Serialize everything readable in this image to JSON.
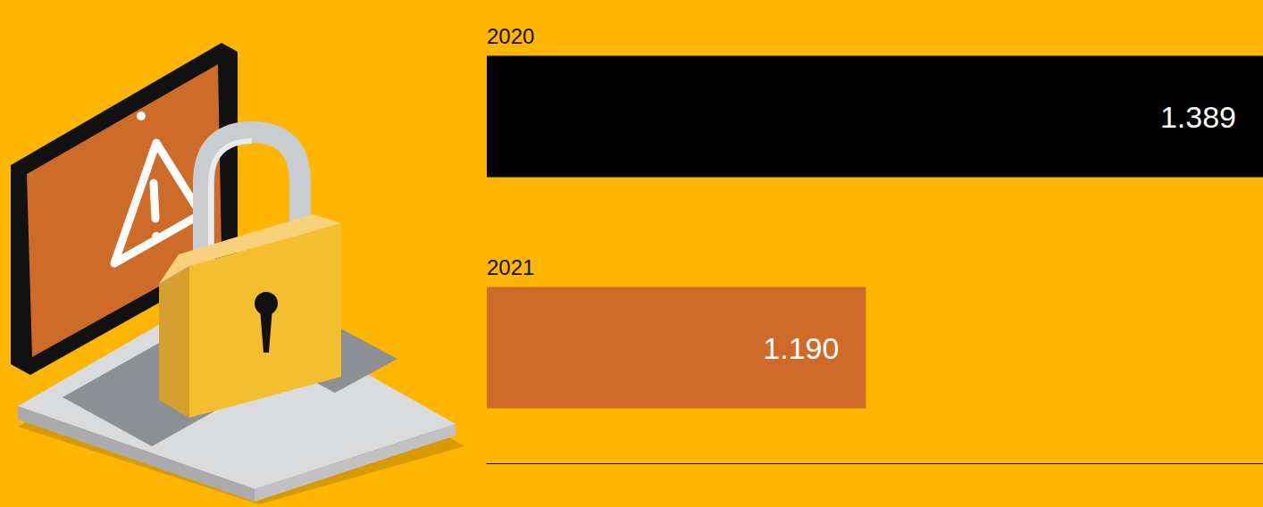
{
  "chart_data": {
    "type": "bar",
    "orientation": "horizontal",
    "categories": [
      "2020",
      "2021"
    ],
    "values": [
      1.389,
      1.19
    ],
    "value_labels": [
      "1.389",
      "1.190"
    ],
    "colors": [
      "#000000",
      "#CF6B29"
    ],
    "xlim": [
      1.0,
      1.389
    ],
    "data_labels": true,
    "tick_labels": false,
    "grid": false
  }
}
